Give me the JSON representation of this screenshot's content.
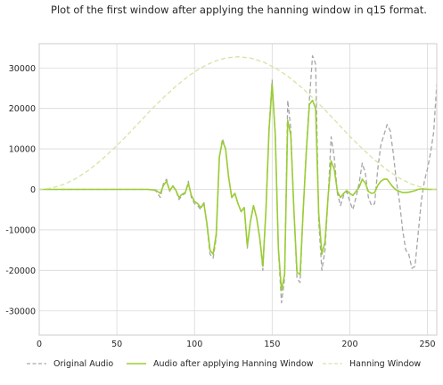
{
  "chart_data": {
    "type": "line",
    "title": "Plot of the first window after applying the hanning window in q15 format.",
    "xlabel": "",
    "ylabel": "",
    "xlim": [
      0,
      256
    ],
    "ylim": [
      -36000,
      36000
    ],
    "xticks": [
      0,
      50,
      100,
      150,
      200,
      250
    ],
    "yticks": [
      -30000,
      -20000,
      -10000,
      0,
      10000,
      20000,
      30000
    ],
    "grid": true,
    "legend_position": "bottom",
    "series": [
      {
        "name": "Original Audio",
        "color": "#a6a6a6",
        "style": "dashed",
        "x": [
          0,
          5,
          10,
          20,
          30,
          40,
          50,
          60,
          65,
          70,
          75,
          78,
          80,
          82,
          84,
          86,
          88,
          90,
          92,
          94,
          96,
          98,
          100,
          102,
          104,
          106,
          108,
          110,
          112,
          114,
          116,
          118,
          120,
          122,
          124,
          126,
          128,
          130,
          132,
          134,
          136,
          138,
          140,
          142,
          144,
          146,
          148,
          150,
          152,
          154,
          156,
          158,
          160,
          162,
          164,
          166,
          168,
          170,
          172,
          174,
          176,
          178,
          180,
          182,
          184,
          186,
          188,
          190,
          192,
          194,
          196,
          198,
          200,
          202,
          204,
          206,
          208,
          210,
          212,
          214,
          216,
          218,
          220,
          222,
          224,
          226,
          228,
          230,
          232,
          234,
          236,
          238,
          240,
          242,
          244,
          246,
          248,
          250,
          252,
          254,
          256
        ],
        "y": [
          0,
          0,
          0,
          0,
          0,
          0,
          0,
          0,
          0,
          0,
          -300,
          -2000,
          1500,
          2500,
          -500,
          1000,
          -200,
          -2500,
          -1500,
          -1000,
          2000,
          -2000,
          -3500,
          -4000,
          -5000,
          -3000,
          -9000,
          -16000,
          -17000,
          -12000,
          8000,
          12500,
          10000,
          3000,
          -2000,
          -1000,
          -3500,
          -5500,
          -4500,
          -14500,
          -8000,
          -4000,
          -7000,
          -12000,
          -20000,
          -5000,
          15000,
          27000,
          14000,
          -15000,
          -28000,
          -22000,
          22000,
          15000,
          -5000,
          -22000,
          -23000,
          -5000,
          10000,
          22000,
          33000,
          31000,
          -8000,
          -20000,
          -15000,
          -2500,
          13000,
          8000,
          -1000,
          -4000,
          -1500,
          -500,
          -3000,
          -5000,
          -2000,
          1500,
          6500,
          4000,
          -2000,
          -4000,
          -3500,
          5000,
          11000,
          13500,
          16000,
          14500,
          9000,
          2000,
          -3000,
          -10000,
          -15000,
          -16000,
          -19500,
          -19000,
          -11000,
          -3000,
          2000,
          5000,
          9000,
          14000,
          26000
        ]
      },
      {
        "name": "Audio after applying Hanning Window",
        "color": "#9acd32",
        "style": "solid",
        "x": [
          0,
          5,
          10,
          20,
          30,
          40,
          50,
          60,
          65,
          70,
          75,
          78,
          80,
          82,
          84,
          86,
          88,
          90,
          92,
          94,
          96,
          98,
          100,
          102,
          104,
          106,
          108,
          110,
          112,
          114,
          116,
          118,
          120,
          122,
          124,
          126,
          128,
          130,
          132,
          134,
          136,
          138,
          140,
          142,
          144,
          146,
          148,
          150,
          152,
          154,
          156,
          158,
          160,
          162,
          164,
          166,
          168,
          170,
          172,
          174,
          176,
          178,
          180,
          182,
          184,
          186,
          188,
          190,
          192,
          194,
          196,
          198,
          200,
          202,
          204,
          206,
          208,
          210,
          212,
          214,
          216,
          218,
          220,
          222,
          224,
          226,
          228,
          230,
          232,
          234,
          236,
          238,
          240,
          242,
          244,
          246,
          248,
          250,
          252,
          254,
          256
        ],
        "y": [
          0,
          0,
          0,
          0,
          0,
          0,
          0,
          0,
          0,
          0,
          -200,
          -1000,
          1000,
          2000,
          -300,
          800,
          -200,
          -2000,
          -1200,
          -800,
          1500,
          -1500,
          -3000,
          -3500,
          -4500,
          -3500,
          -8500,
          -15000,
          -16000,
          -11000,
          8000,
          12000,
          10000,
          3000,
          -2000,
          -1000,
          -3500,
          -5500,
          -4500,
          -14000,
          -8000,
          -4000,
          -7000,
          -12000,
          -19000,
          -5000,
          14500,
          26000,
          13500,
          -14500,
          -25000,
          -21000,
          17000,
          13500,
          -5000,
          -20500,
          -21000,
          -5000,
          9500,
          21000,
          22000,
          20000,
          -6000,
          -16000,
          -13000,
          -2000,
          7000,
          5000,
          -500,
          -2000,
          -1000,
          -300,
          -1000,
          -1500,
          -500,
          500,
          2500,
          1500,
          -500,
          -1000,
          -800,
          1000,
          2000,
          2500,
          2500,
          1500,
          500,
          -200,
          -500,
          -800,
          -800,
          -700,
          -500,
          -300,
          0,
          100,
          100,
          0,
          0,
          0,
          0
        ]
      },
      {
        "name": "Hanning Window",
        "color": "#d3e5a3",
        "style": "dashed",
        "x": [
          0,
          8,
          16,
          24,
          32,
          40,
          48,
          56,
          64,
          72,
          80,
          88,
          96,
          104,
          112,
          120,
          128,
          136,
          144,
          152,
          160,
          168,
          176,
          184,
          192,
          200,
          208,
          216,
          224,
          232,
          240,
          248,
          256
        ],
        "y": [
          0,
          314,
          1246,
          2764,
          4799,
          7270,
          10082,
          13128,
          16384,
          19640,
          22686,
          25498,
          27969,
          30004,
          31522,
          32454,
          32768,
          32454,
          31522,
          30004,
          27969,
          25498,
          22686,
          19640,
          16384,
          13128,
          10082,
          7270,
          4799,
          2764,
          1246,
          314,
          0
        ]
      }
    ]
  }
}
